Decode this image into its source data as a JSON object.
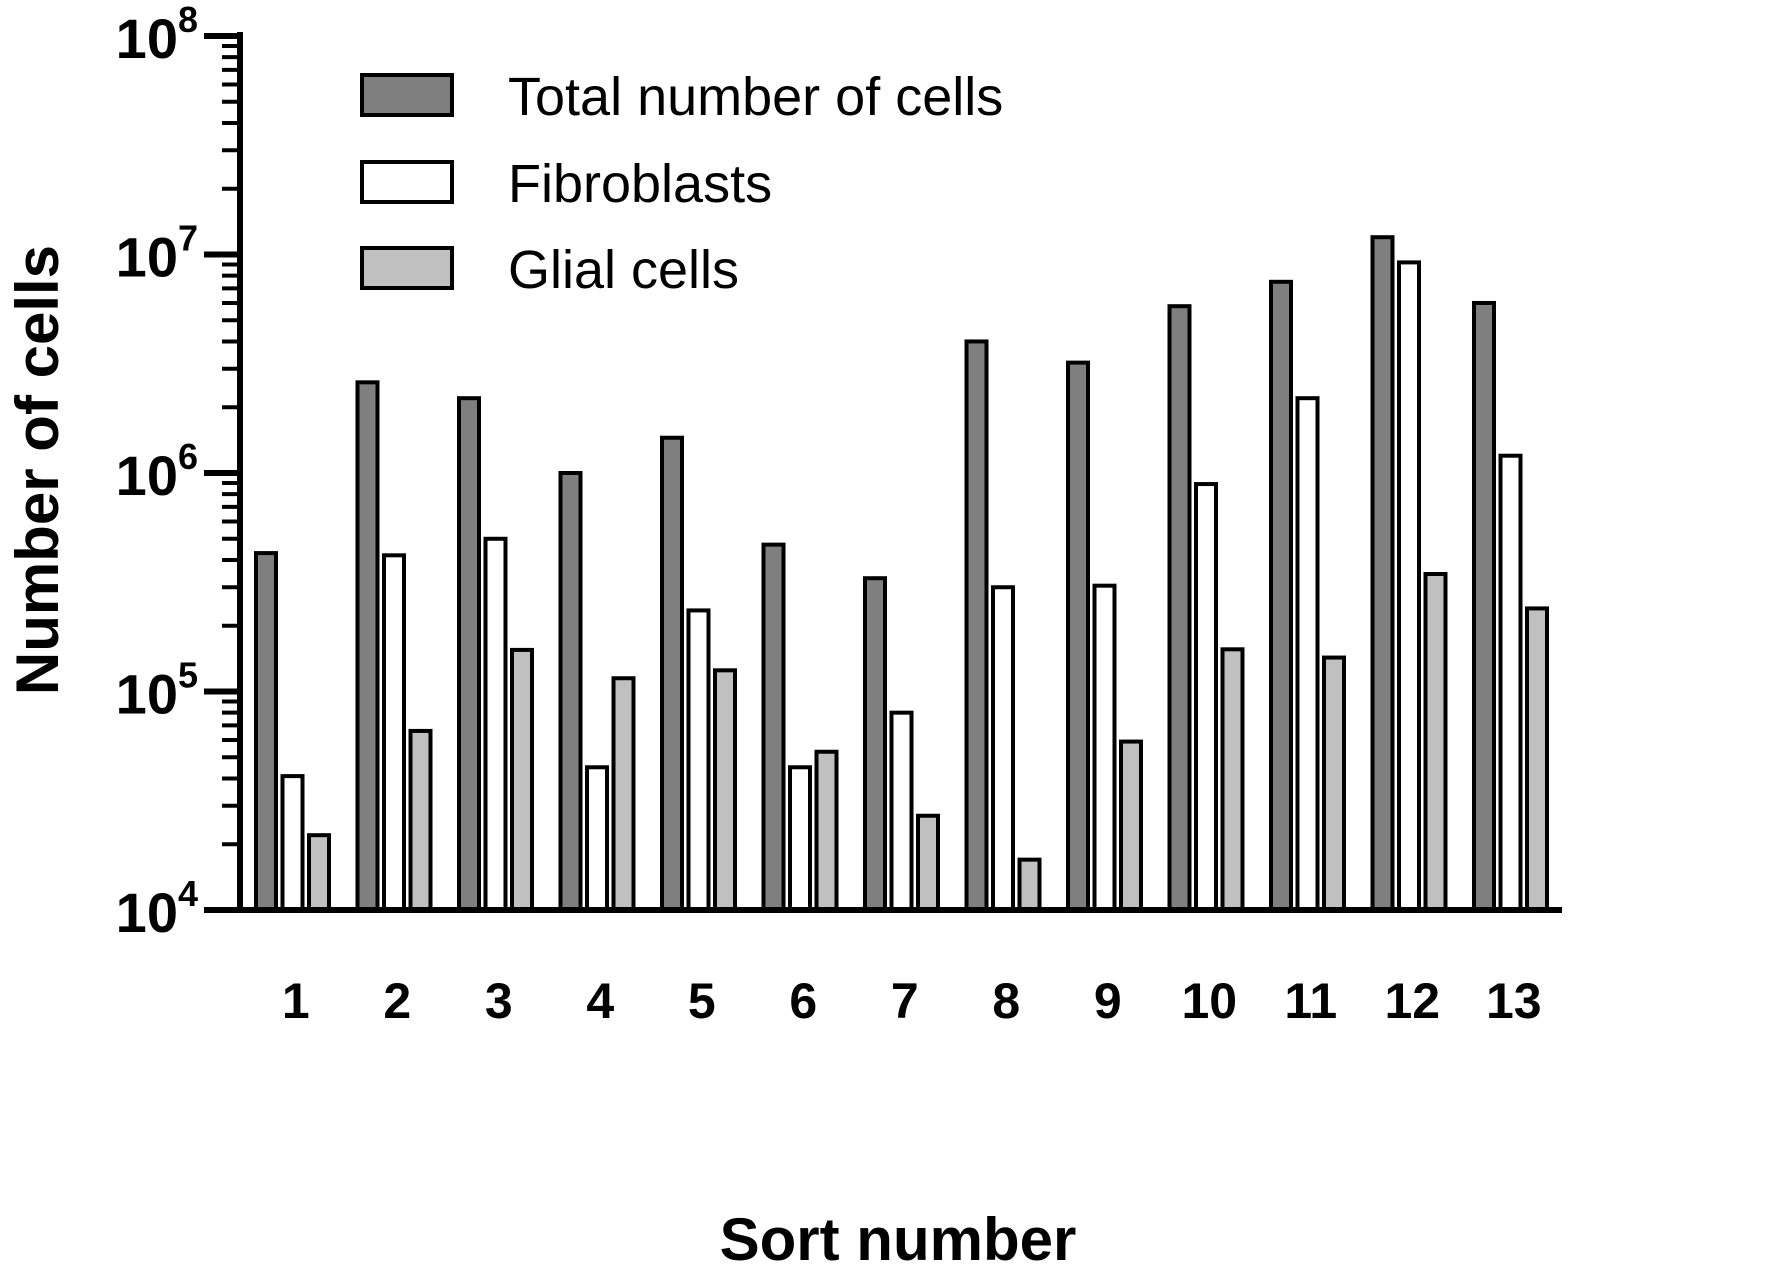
{
  "chart_data": {
    "type": "bar",
    "scale": "log",
    "xlabel": "Sort number",
    "ylabel": "Number of cells",
    "ylim": [
      10000,
      100000000
    ],
    "y_ticks": [
      {
        "base": "10",
        "exp": "4",
        "value": 10000
      },
      {
        "base": "10",
        "exp": "5",
        "value": 100000
      },
      {
        "base": "10",
        "exp": "6",
        "value": 1000000
      },
      {
        "base": "10",
        "exp": "7",
        "value": 10000000
      },
      {
        "base": "10",
        "exp": "8",
        "value": 100000000
      }
    ],
    "categories": [
      "1",
      "2",
      "3",
      "4",
      "5",
      "6",
      "7",
      "8",
      "9",
      "10",
      "11",
      "12",
      "13"
    ],
    "series": [
      {
        "name": "Total number of cells",
        "color": "#7f7f7f",
        "values": [
          430000,
          2600000,
          2200000,
          1000000,
          1450000,
          470000,
          330000,
          4000000,
          3200000,
          5800000,
          7500000,
          12000000,
          6000000
        ]
      },
      {
        "name": "Fibroblasts",
        "color": "#ffffff",
        "values": [
          41000,
          420000,
          500000,
          45000,
          235000,
          45000,
          80000,
          300000,
          305000,
          890000,
          2200000,
          9200000,
          1200000
        ]
      },
      {
        "name": "Glial cells",
        "color": "#c0c0c0",
        "values": [
          22000,
          66000,
          155000,
          115000,
          125000,
          53000,
          27000,
          17000,
          59000,
          156000,
          143000,
          345000,
          240000
        ]
      }
    ],
    "legend_position": "top-left"
  }
}
